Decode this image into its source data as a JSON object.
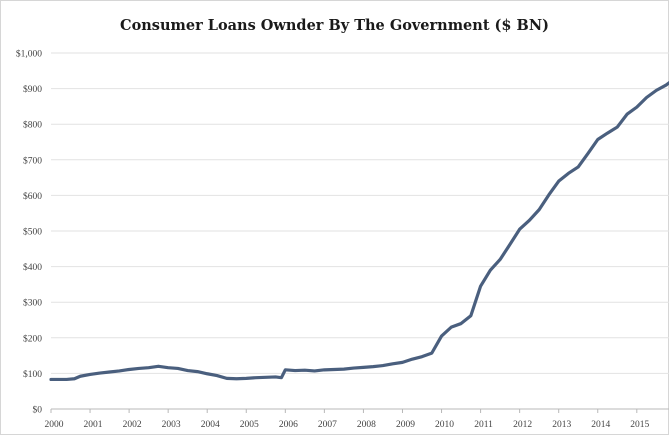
{
  "chart_data": {
    "type": "line",
    "title": "Consumer Loans Ownder By The Government ($ BN)",
    "xlabel": "",
    "ylabel": "",
    "x_tick_labels": [
      "2000",
      "2001",
      "2002",
      "2003",
      "2004",
      "2005",
      "2006",
      "2007",
      "2008",
      "2009",
      "2010",
      "2011",
      "2012",
      "2013",
      "2014",
      "2015"
    ],
    "y_tick_labels": [
      "$0",
      "$100",
      "$200",
      "$300",
      "$400",
      "$500",
      "$600",
      "$700",
      "$800",
      "$900",
      "$1,000"
    ],
    "xlim": [
      2000.0,
      2015.85
    ],
    "ylim": [
      0,
      1000
    ],
    "grid": "horizontal",
    "legend": "none",
    "line_color": "#4a5f7e",
    "series": [
      {
        "name": "",
        "x": [
          2000.0,
          2000.4,
          2000.6,
          2000.75,
          2001.0,
          2001.25,
          2001.5,
          2001.75,
          2002.0,
          2002.25,
          2002.5,
          2002.75,
          2003.0,
          2003.25,
          2003.5,
          2003.75,
          2004.0,
          2004.25,
          2004.5,
          2004.75,
          2005.0,
          2005.25,
          2005.5,
          2005.75,
          2005.9,
          2006.0,
          2006.25,
          2006.5,
          2006.75,
          2007.0,
          2007.25,
          2007.5,
          2007.75,
          2008.0,
          2008.25,
          2008.5,
          2008.75,
          2009.0,
          2009.25,
          2009.5,
          2009.75,
          2010.0,
          2010.25,
          2010.5,
          2010.75,
          2011.0,
          2011.25,
          2011.5,
          2011.75,
          2012.0,
          2012.25,
          2012.5,
          2012.75,
          2013.0,
          2013.25,
          2013.5,
          2013.75,
          2014.0,
          2014.25,
          2014.5,
          2014.75,
          2015.0,
          2015.25,
          2015.5,
          2015.75,
          2015.85
        ],
        "y": [
          83,
          83,
          85,
          92,
          97,
          101,
          104,
          107,
          111,
          114,
          116,
          120,
          116,
          114,
          108,
          105,
          99,
          94,
          86,
          85,
          86,
          88,
          89,
          90,
          88,
          110,
          108,
          109,
          107,
          110,
          111,
          112,
          115,
          117,
          119,
          122,
          127,
          131,
          140,
          147,
          157,
          205,
          230,
          240,
          262,
          345,
          390,
          420,
          462,
          505,
          530,
          560,
          602,
          640,
          662,
          680,
          718,
          757,
          775,
          792,
          828,
          848,
          875,
          895,
          910,
          918
        ]
      }
    ]
  }
}
